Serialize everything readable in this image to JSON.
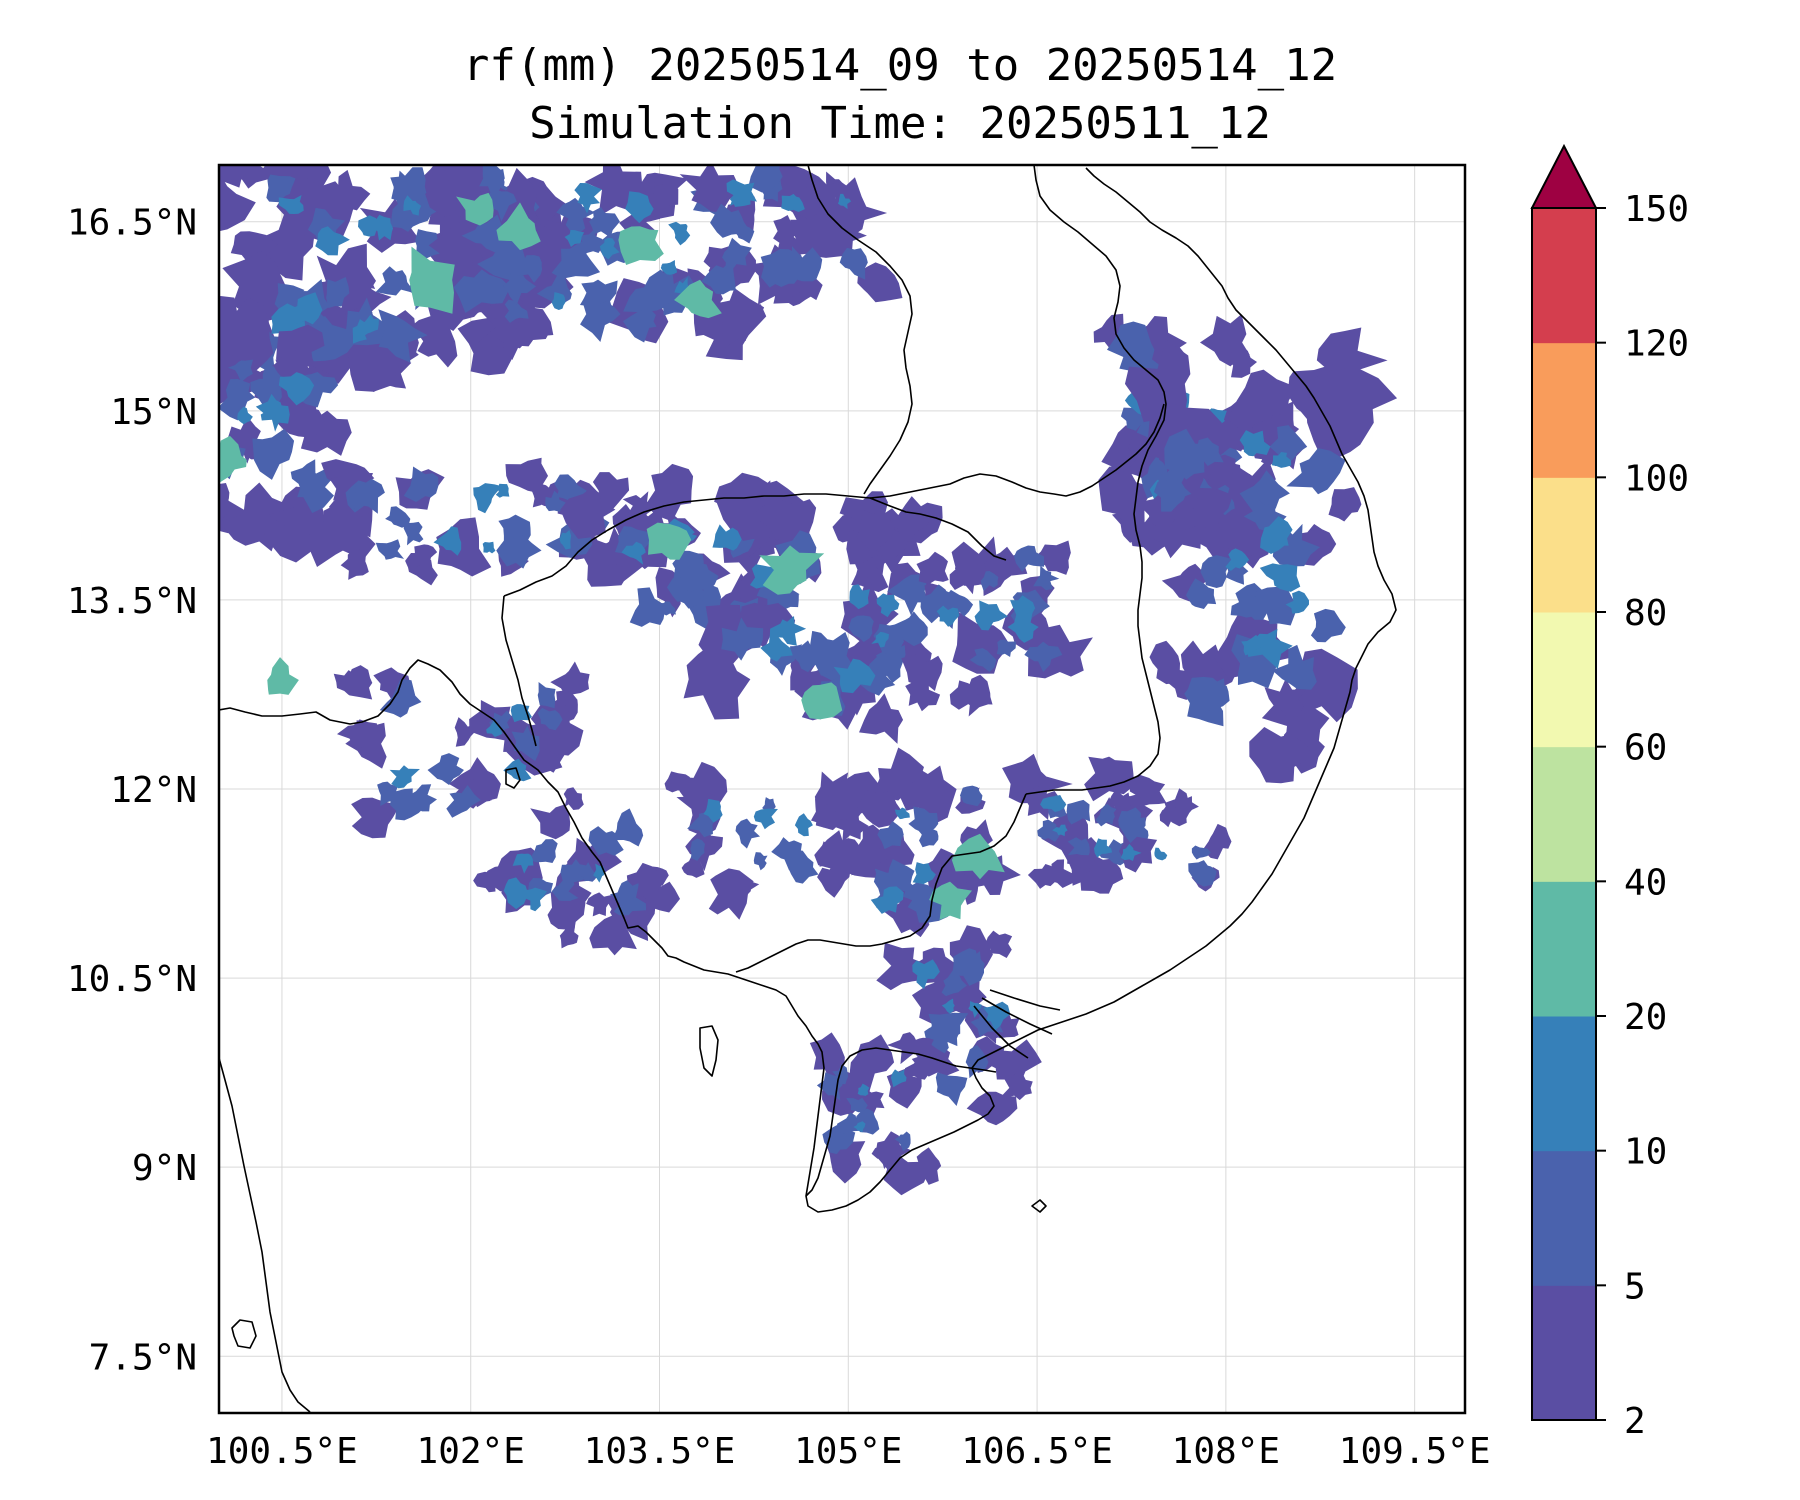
{
  "title": {
    "line1": "rf(mm) 20250514_09 to 20250514_12",
    "line2": "Simulation Time: 20250511_12"
  },
  "map": {
    "lon_range": [
      100.0,
      109.9
    ],
    "lat_range": [
      7.05,
      16.95
    ],
    "lon_ticks": [
      100.5,
      102,
      103.5,
      105,
      106.5,
      108,
      109.5
    ],
    "lon_tick_labels": [
      "100.5°E",
      "102°E",
      "103.5°E",
      "105°E",
      "106.5°E",
      "108°E",
      "109.5°E"
    ],
    "lat_ticks": [
      16.5,
      15,
      13.5,
      12,
      10.5,
      9,
      7.5
    ],
    "lat_tick_labels": [
      "16.5°N",
      "15°N",
      "13.5°N",
      "12°N",
      "10.5°N",
      "9°N",
      "7.5°N"
    ],
    "gridlines": true
  },
  "colorbar": {
    "levels": [
      2,
      5,
      10,
      20,
      40,
      60,
      80,
      100,
      120,
      150
    ],
    "tick_labels": [
      "2",
      "5",
      "10",
      "20",
      "40",
      "60",
      "80",
      "100",
      "120",
      "150"
    ],
    "colors": [
      "#5a4ea3",
      "#4a62ad",
      "#3680b9",
      "#5fbaa6",
      "#bde3a0",
      "#f2f9b0",
      "#fbdf8a",
      "#f99c5b",
      "#d43e4e"
    ],
    "extend_color": "#9e0142",
    "extend": "max"
  },
  "rain_colors": {
    "light": "#5a4ea3",
    "mid": "#4a62ad",
    "heavy": "#3680b9",
    "intense": "#5fbaa6"
  }
}
